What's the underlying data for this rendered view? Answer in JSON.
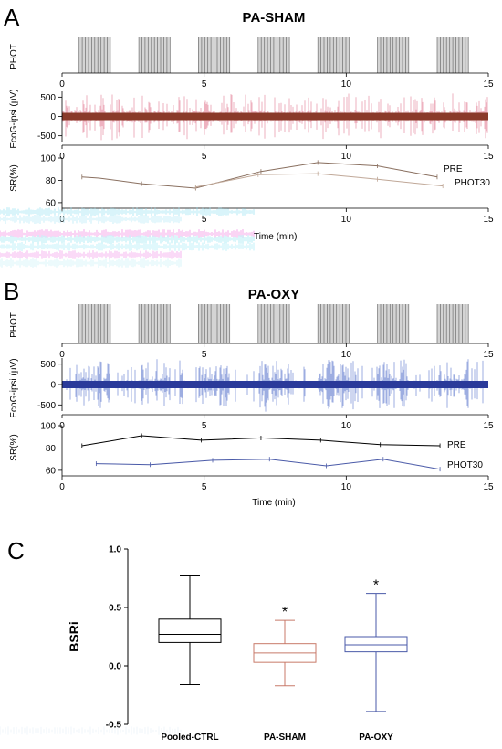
{
  "colors": {
    "sham_ecog": "#e0708a",
    "sham_ecog_core": "#8a3a2a",
    "oxy_ecog": "#4a68c8",
    "oxy_ecog_core": "#2a3a9a",
    "sham_box": "#c87a6a",
    "oxy_box": "#4a5aa8",
    "ctrl_box": "#000000",
    "phot_bars": "#b0b0b0",
    "sham_sr_line": "#8a7060",
    "oxy_phot30_line": "#4a5aa8"
  },
  "chart_data": [
    {
      "panel_letter": "A",
      "title": "PA-SHAM",
      "type": "line",
      "time_label": "Time (min)",
      "xlim": [
        0,
        15
      ],
      "x_ticks": [
        "0",
        "5",
        "10",
        "15"
      ],
      "phot": {
        "ylabel": "PHOT",
        "blocks_min": [
          [
            0.6,
            1.7
          ],
          [
            2.7,
            3.8
          ],
          [
            4.8,
            5.9
          ],
          [
            6.9,
            8.0
          ],
          [
            9.0,
            10.1
          ],
          [
            11.1,
            12.2
          ],
          [
            13.2,
            14.3
          ]
        ]
      },
      "ecog": {
        "ylabel": "EcoG-ipsi (µV)",
        "ylim": [
          -650,
          650
        ],
        "y_ticks": [
          "500",
          "0",
          "-500"
        ],
        "y_tick_values": [
          500,
          0,
          -500
        ]
      },
      "sr": {
        "ylabel": "SR(%)",
        "ylim": [
          55,
          100
        ],
        "y_ticks": [
          "100",
          "80",
          "60"
        ],
        "y_tick_values": [
          100,
          80,
          60
        ],
        "series": [
          {
            "name": "PRE",
            "x": [
              0.7,
              1.3,
              2.8,
              4.7,
              7.0,
              9.0,
              11.1,
              13.2
            ],
            "y": [
              83,
              82,
              77,
              73,
              88,
              96,
              93,
              83
            ]
          },
          {
            "name": "PHOT30",
            "x": [
              4.7,
              6.9,
              9.0,
              11.1,
              13.4
            ],
            "y": [
              74,
              85,
              86,
              81,
              75
            ]
          }
        ]
      }
    },
    {
      "panel_letter": "B",
      "title": "PA-OXY",
      "type": "line",
      "time_label": "Time (min)",
      "xlim": [
        0,
        15
      ],
      "x_ticks": [
        "0",
        "5",
        "10",
        "15"
      ],
      "phot": {
        "ylabel": "PHOT",
        "blocks_min": [
          [
            0.6,
            1.7
          ],
          [
            2.7,
            3.8
          ],
          [
            4.8,
            5.9
          ],
          [
            6.9,
            8.0
          ],
          [
            9.0,
            10.1
          ],
          [
            11.1,
            12.2
          ],
          [
            13.2,
            14.3
          ]
        ]
      },
      "ecog": {
        "ylabel": "EcoG-ipsi (µV)",
        "ylim": [
          -650,
          650
        ],
        "y_ticks": [
          "500",
          "0",
          "-500"
        ],
        "y_tick_values": [
          500,
          0,
          -500
        ]
      },
      "sr": {
        "ylabel": "SR(%)",
        "ylim": [
          55,
          100
        ],
        "y_ticks": [
          "100",
          "80",
          "60"
        ],
        "y_tick_values": [
          100,
          80,
          60
        ],
        "series": [
          {
            "name": "PRE",
            "x": [
              0.7,
              2.8,
              4.9,
              7.0,
              9.1,
              11.2,
              13.3
            ],
            "y": [
              82,
              91,
              87,
              89,
              87,
              83,
              82
            ]
          },
          {
            "name": "PHOT30",
            "x": [
              1.2,
              3.1,
              5.3,
              7.3,
              9.3,
              11.3,
              13.3
            ],
            "y": [
              66,
              65,
              69,
              70,
              64,
              70,
              61
            ]
          }
        ]
      }
    },
    {
      "panel_letter": "C",
      "type": "box",
      "ylabel": "BSRi",
      "ylim": [
        -0.5,
        1.0
      ],
      "y_ticks": [
        "1.0",
        "0.5",
        "0.0",
        "-0.5"
      ],
      "y_tick_values": [
        1.0,
        0.5,
        0.0,
        -0.5
      ],
      "groups": [
        {
          "name": "Pooled-CTRL",
          "min": -0.16,
          "q1": 0.2,
          "median": 0.27,
          "q3": 0.4,
          "max": 0.77,
          "significance": ""
        },
        {
          "name": "PA-SHAM",
          "min": -0.17,
          "q1": 0.03,
          "median": 0.11,
          "q3": 0.19,
          "max": 0.39,
          "significance": "*"
        },
        {
          "name": "PA-OXY",
          "min": -0.39,
          "q1": 0.12,
          "median": 0.18,
          "q3": 0.25,
          "max": 0.62,
          "significance": "*"
        }
      ]
    }
  ]
}
